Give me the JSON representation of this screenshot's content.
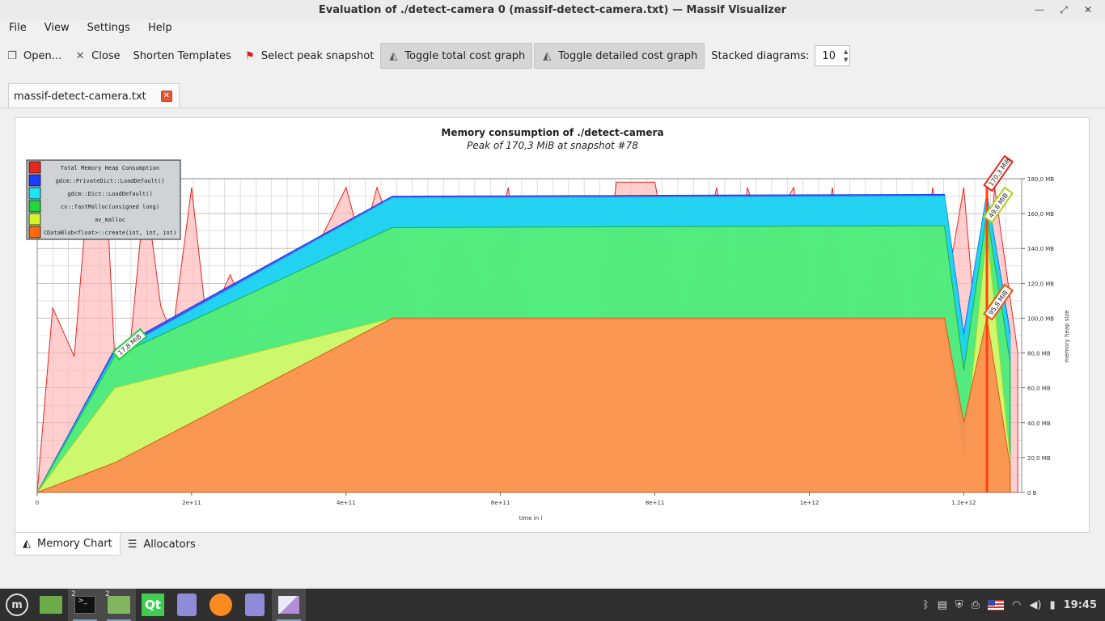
{
  "window": {
    "title": "Evaluation of ./detect-camera 0 (massif-detect-camera.txt) — Massif Visualizer"
  },
  "menu": [
    "File",
    "View",
    "Settings",
    "Help"
  ],
  "toolbar": {
    "open": "Open...",
    "close": "Close",
    "shorten": "Shorten Templates",
    "peak": "Select peak snapshot",
    "total": "Toggle total cost graph",
    "detailed": "Toggle detailed cost graph",
    "stacked_label": "Stacked diagrams:",
    "stacked_value": "10"
  },
  "tab": {
    "label": "massif-detect-camera.txt"
  },
  "bottom_tabs": {
    "memory": "Memory Chart",
    "allocators": "Allocators"
  },
  "colors": {
    "red": "#e8281e",
    "blue": "#1a3cff",
    "cyan": "#1ce6f0",
    "green": "#22d63a",
    "yellow": "#d4f52a",
    "orange": "#ff6a10"
  },
  "chart_data": {
    "type": "area",
    "title": "Memory consumption of ./detect-camera",
    "subtitle": "Peak of 170,3 MiB at snapshot #78",
    "xlabel": "time in i",
    "ylabel": "memory heap size",
    "x_ticks": [
      "0",
      "2e+11",
      "4e+11",
      "6e+11",
      "8e+11",
      "1e+12",
      "1.2e+12"
    ],
    "y_ticks": [
      "0 B",
      "20,0 MB",
      "40,0 MB",
      "60,0 MB",
      "80,0 MB",
      "100,0 MB",
      "120,0 MB",
      "140,0 MB",
      "160,0 MB",
      "180,0 MB"
    ],
    "xlim": [
      0,
      1275000000000.0
    ],
    "ylim": [
      0,
      180
    ],
    "legend": {
      "placement": "top-left",
      "entries": [
        {
          "name": "Total Memory Heap Consumption",
          "color": "#e8281e"
        },
        {
          "name": "gdcm::PrivateDict::LoadDefault()",
          "color": "#1a3cff"
        },
        {
          "name": "gdcm::Dict::LoadDefault()",
          "color": "#1ce6f0"
        },
        {
          "name": "cv::fastMalloc(unsigned long)",
          "color": "#22d63a"
        },
        {
          "name": "av_malloc",
          "color": "#d4f52a"
        },
        {
          "name": "CDataBlob<float>::create(int, int, int)",
          "color": "#ff6a10"
        }
      ]
    },
    "labels": [
      "17,8 MiB",
      "170,3 MiB",
      "49,8 MiB",
      "95,8 MiB"
    ],
    "series": [
      {
        "name": "Total Memory Heap Consumption",
        "x": [
          0,
          20000000000.0,
          48000000000.0,
          65000000000.0,
          90000000000.0,
          100000000000.0,
          120000000000.0,
          140000000000.0,
          160000000000.0,
          175000000000.0,
          200000000000.0,
          220000000000.0,
          250000000000.0,
          280000000000.0,
          300000000000.0,
          330000000000.0,
          350000000000.0,
          400000000000.0,
          420000000000.0,
          440000000000.0,
          460000000000.0,
          500000000000.0,
          530000000000.0,
          550000000000.0,
          580000000000.0,
          610000000000.0,
          630000000000.0,
          660000000000.0,
          700000000000.0,
          730000000000.0,
          750000000000.0,
          800000000000.0,
          820000000000.0,
          840000000000.0,
          880000000000.0,
          900000000000.0,
          920000000000.0,
          940000000000.0,
          980000000000.0,
          1000000000000.0,
          1030000000000.0,
          1050000000000.0,
          1100000000000.0,
          1130000000000.0,
          1160000000000.0,
          1175000000000.0,
          1200000000000.0,
          1220000000000.0,
          1240000000000.0,
          1270000000000.0
        ],
        "values": [
          0,
          106,
          78,
          170,
          170,
          80,
          82,
          175,
          107,
          90,
          175,
          95,
          125,
          92,
          100,
          118,
          130,
          175,
          142,
          175,
          150,
          93,
          143,
          142,
          112,
          175,
          102,
          91,
          88,
          102,
          178,
          178,
          128,
          98,
          175,
          115,
          175,
          145,
          175,
          95,
          175,
          90,
          145,
          92,
          175,
          110,
          175,
          70,
          175,
          80
        ]
      },
      {
        "name": "gdcm::PrivateDict::LoadDefault()",
        "x": [
          0,
          100000000000.0,
          460000000000.0,
          1175000000000.0,
          1200000000000.0,
          1230000000000.0,
          1260000000000.0
        ],
        "values": [
          0,
          82,
          170,
          171,
          91,
          172,
          92
        ]
      },
      {
        "name": "gdcm::Dict::LoadDefault()",
        "x": [
          0,
          100000000000.0,
          460000000000.0,
          1175000000000.0,
          1200000000000.0,
          1230000000000.0,
          1260000000000.0
        ],
        "values": [
          0,
          80,
          169,
          170,
          89,
          171,
          90
        ]
      },
      {
        "name": "cv::fastMalloc(unsigned long)",
        "x": [
          0,
          100000000000.0,
          460000000000.0,
          1175000000000.0,
          1200000000000.0,
          1230000000000.0,
          1260000000000.0
        ],
        "values": [
          0,
          78,
          152,
          153,
          70,
          160,
          75
        ]
      },
      {
        "name": "av_malloc",
        "x": [
          0,
          100000000000.0,
          460000000000.0,
          1175000000000.0,
          1200000000000.0,
          1230000000000.0,
          1260000000000.0
        ],
        "values": [
          0,
          60,
          100,
          100,
          20,
          150,
          20
        ]
      },
      {
        "name": "CDataBlob<float>::create(int, int, int)",
        "x": [
          0,
          100000000000.0,
          460000000000.0,
          1175000000000.0,
          1200000000000.0,
          1230000000000.0,
          1260000000000.0
        ],
        "values": [
          0,
          17,
          100,
          100,
          40,
          100,
          15
        ]
      }
    ]
  },
  "taskbar": {
    "clock": "19:45",
    "badge_terminal": "2",
    "badge_files": "2",
    "qt_label": "Qt"
  }
}
